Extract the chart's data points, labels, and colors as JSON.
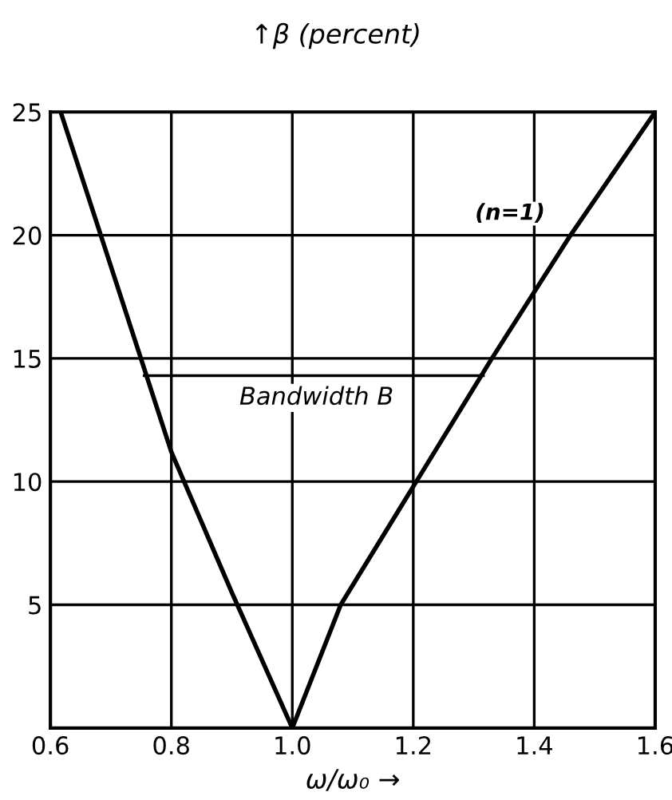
{
  "chart_data": {
    "type": "line",
    "xlabel": "ω/ω₀ →",
    "ylabel": "↑β (percent)",
    "x": [
      0.617,
      0.8,
      0.9,
      1.0,
      1.08,
      1.2,
      1.33,
      1.46,
      1.6
    ],
    "series": [
      {
        "color": "#000000",
        "values": [
          25,
          11.2,
          5.5,
          0,
          5,
          9.8,
          15,
          20,
          25
        ]
      },
      {
        "color": "#000000",
        "x": [
          0.755,
          1.316
        ],
        "values": [
          14.3,
          14.3
        ]
      }
    ],
    "annotations": [
      "Bandwidth B",
      "(n=1)"
    ],
    "xlim": [
      0.6,
      1.6
    ],
    "ylim": [
      0,
      25
    ],
    "xticks": [
      0.6,
      0.8,
      {
        "value": 1.0,
        "label": "1.0"
      },
      1.2,
      1.4,
      1.6
    ],
    "yticks": [
      {
        "value": 0,
        "label": null
      },
      5,
      10,
      15,
      20,
      25
    ],
    "grid": true,
    "marker": "none",
    "line_style": "solid"
  }
}
